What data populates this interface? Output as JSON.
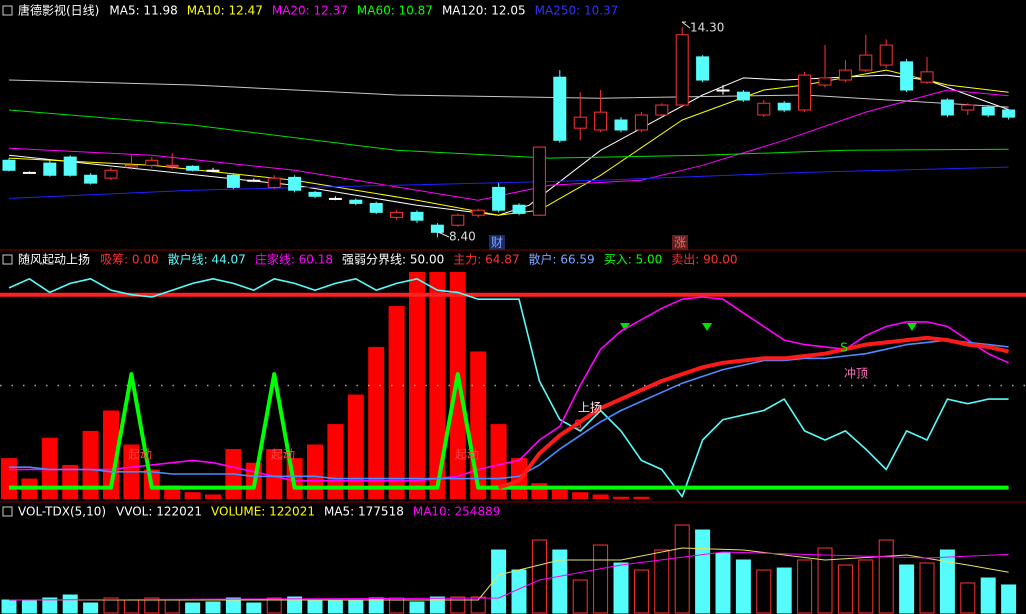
{
  "chart_data": [
    {
      "type": "candlestick",
      "title": "唐德影视(日线)",
      "legend_items": [
        {
          "text": "MA5: 11.98",
          "color": "#ffffff"
        },
        {
          "text": "MA10: 12.47",
          "color": "#ffff00"
        },
        {
          "text": "MA20: 12.37",
          "color": "#ff00ff"
        },
        {
          "text": "MA60: 10.87",
          "color": "#00ff00"
        },
        {
          "text": "MA120: 12.05",
          "color": "#ffffff"
        },
        {
          "text": "MA250: 10.37",
          "color": "#3030ff"
        }
      ],
      "ylim": [
        8.1,
        14.55
      ],
      "up_color": "#ff3232",
      "down_color": "#54fcfc",
      "candles": {
        "open": [
          10.56,
          10.22,
          10.48,
          10.65,
          10.14,
          10.06,
          10.37,
          10.42,
          10.39,
          10.39,
          10.28,
          10.14,
          10.0,
          9.8,
          10.08,
          9.66,
          9.49,
          9.44,
          9.35,
          8.96,
          9.1,
          8.74,
          8.74,
          9.02,
          9.8,
          9.3,
          9.02,
          12.89,
          11.46,
          11.41,
          11.69,
          11.41,
          11.83,
          12.11,
          13.46,
          12.53,
          12.47,
          11.83,
          12.16,
          11.97,
          12.67,
          12.81,
          13.09,
          13.23,
          13.32,
          12.75,
          12.25,
          11.97,
          12.05,
          11.97
        ],
        "high": [
          10.62,
          10.25,
          10.56,
          10.7,
          10.2,
          10.35,
          10.7,
          10.65,
          10.76,
          10.42,
          10.35,
          10.2,
          10.05,
          10.14,
          10.14,
          9.7,
          9.55,
          9.49,
          9.4,
          9.16,
          9.16,
          8.8,
          9.07,
          9.2,
          9.92,
          9.35,
          10.93,
          13.09,
          12.47,
          12.53,
          11.77,
          11.91,
          12.16,
          14.3,
          13.51,
          12.67,
          12.53,
          12.25,
          12.22,
          13.04,
          13.79,
          13.37,
          14.08,
          13.95,
          13.4,
          13.46,
          12.3,
          12.16,
          12.11,
          12.0
        ],
        "low": [
          10.25,
          10.2,
          10.1,
          10.1,
          9.88,
          10.0,
          10.3,
          10.35,
          10.3,
          10.25,
          10.22,
          9.75,
          9.95,
          9.75,
          9.66,
          9.5,
          9.44,
          9.3,
          9.05,
          8.9,
          8.8,
          8.4,
          8.7,
          8.96,
          9.1,
          9.02,
          9.0,
          11.05,
          11.12,
          11.35,
          11.35,
          11.35,
          11.77,
          12.05,
          12.75,
          12.4,
          12.2,
          11.77,
          11.91,
          11.91,
          12.6,
          12.75,
          13.04,
          13.15,
          12.47,
          12.7,
          11.77,
          11.83,
          11.77,
          11.7
        ],
        "close": [
          10.28,
          10.22,
          10.14,
          10.14,
          9.92,
          10.28,
          10.42,
          10.56,
          10.42,
          10.28,
          10.28,
          9.8,
          10.0,
          10.06,
          9.72,
          9.55,
          9.49,
          9.35,
          9.1,
          9.1,
          8.88,
          8.54,
          9.02,
          9.16,
          9.16,
          9.07,
          10.93,
          11.12,
          11.77,
          11.91,
          11.41,
          11.83,
          12.11,
          14.08,
          12.81,
          12.53,
          12.25,
          12.16,
          11.97,
          12.95,
          12.87,
          13.09,
          13.51,
          13.79,
          12.53,
          13.04,
          11.83,
          12.11,
          11.83,
          11.77
        ]
      },
      "series": [
        {
          "color": "#ffffff",
          "x": [
            0,
            7,
            14,
            20,
            24,
            25.5,
            29,
            34,
            36,
            38,
            43,
            45,
            49
          ],
          "values": [
            10.7,
            10.28,
            9.86,
            9.3,
            9.02,
            9.3,
            10.84,
            12.39,
            12.87,
            12.81,
            12.95,
            12.81,
            11.98
          ]
        },
        {
          "color": "#ffff00",
          "x": [
            0,
            7,
            14,
            20,
            24,
            26,
            29,
            33,
            37,
            39,
            43,
            46,
            49
          ],
          "values": [
            10.62,
            10.42,
            10.0,
            9.44,
            9.02,
            9.16,
            10.14,
            11.69,
            12.53,
            12.67,
            13.09,
            12.67,
            12.47
          ]
        },
        {
          "color": "#ff00ff",
          "x": [
            0,
            7,
            14,
            20,
            23,
            26.5,
            31,
            34,
            38,
            42,
            46,
            49
          ],
          "values": [
            10.9,
            10.7,
            10.28,
            9.72,
            9.44,
            9.86,
            10.0,
            10.42,
            11.12,
            11.91,
            12.53,
            12.37
          ]
        },
        {
          "color": "#00e000",
          "x": [
            0,
            9,
            19,
            26.5,
            34,
            41,
            49
          ],
          "values": [
            11.97,
            11.55,
            10.84,
            10.62,
            10.7,
            10.84,
            10.87
          ]
        },
        {
          "color": "#c8c8c8",
          "x": [
            0,
            9,
            19,
            29,
            39,
            49
          ],
          "values": [
            12.81,
            12.67,
            12.39,
            12.3,
            12.39,
            12.05
          ]
        },
        {
          "color": "#2020ff",
          "x": [
            0,
            9,
            19,
            29,
            39,
            49
          ],
          "values": [
            9.49,
            9.72,
            9.86,
            10.0,
            10.22,
            10.37
          ]
        }
      ],
      "annotations": [
        "14.30",
        "8.40",
        "财",
        "涨"
      ]
    },
    {
      "type": "indicator",
      "title": "随风起动上扬",
      "legend_items": [
        {
          "text": "吸筹: 0.00",
          "color": "#ff3030"
        },
        {
          "text": "散户线: 44.07",
          "color": "#54fcfc"
        },
        {
          "text": "庄家线: 60.18",
          "color": "#ff00ff"
        },
        {
          "text": "强弱分界线: 50.00",
          "color": "#ffffff"
        },
        {
          "text": "主力: 64.87",
          "color": "#ff3030"
        },
        {
          "text": "散户: 66.59",
          "color": "#7aa8ff"
        },
        {
          "text": "买入: 5.00",
          "color": "#00ff00"
        },
        {
          "text": "卖出: 90.00",
          "color": "#ff3030"
        }
      ],
      "ylim": [
        0,
        100
      ],
      "bar_color": "#ff0000",
      "values": [
        18,
        9,
        27,
        15,
        30,
        39,
        24,
        13,
        6,
        3,
        2,
        22,
        16,
        22,
        18,
        24,
        33,
        46,
        67,
        85,
        100,
        100,
        100,
        65,
        33,
        18,
        7,
        4,
        3,
        2,
        1,
        1,
        0,
        0,
        0,
        0,
        0,
        0,
        0,
        0,
        0,
        0,
        0,
        0,
        0,
        0,
        0,
        0,
        0,
        0
      ],
      "reference_lines": [
        {
          "value": 90,
          "color": "#ff2020",
          "style": "solid"
        },
        {
          "value": 50,
          "color": "#aaaaaa",
          "style": "dotted"
        }
      ],
      "series": [
        {
          "color": "#54fcfc",
          "thick": false,
          "values": [
            93,
            97,
            91,
            95,
            97,
            92,
            90,
            89,
            92,
            95,
            97,
            95,
            92,
            97,
            95,
            92,
            95,
            97,
            92,
            95,
            97,
            92,
            91,
            88,
            88,
            88,
            52,
            35,
            30,
            39,
            30,
            17,
            13,
            1,
            26,
            35,
            37,
            39,
            44,
            30,
            26,
            30,
            22,
            13,
            30,
            26,
            44,
            42,
            44,
            44
          ]
        },
        {
          "color": "#ff00ff",
          "thick": false,
          "values": [
            13,
            13,
            13,
            13,
            13,
            13,
            14,
            15,
            16,
            17,
            16,
            14,
            12,
            10,
            8,
            8,
            8,
            8,
            8,
            8,
            8,
            9,
            10,
            13,
            15,
            17,
            26,
            32,
            50,
            66,
            74,
            79,
            84,
            88,
            89,
            88,
            82,
            76,
            70,
            68,
            67,
            66,
            72,
            76,
            78,
            78,
            76,
            70,
            64,
            60
          ]
        },
        {
          "color": "#00ff00",
          "thick": true,
          "values": [
            5,
            5,
            5,
            5,
            5,
            5,
            55,
            5,
            5,
            5,
            5,
            5,
            5,
            55,
            5,
            5,
            5,
            5,
            5,
            5,
            5,
            5,
            55,
            5,
            5,
            5,
            5,
            5,
            5,
            5,
            5,
            5,
            5,
            5,
            5,
            5,
            5,
            5,
            5,
            5,
            5,
            5,
            5,
            5,
            5,
            5,
            5,
            5,
            5,
            5
          ]
        },
        {
          "color": "#4a8cff",
          "thick": false,
          "values": [
            14,
            14,
            13,
            13,
            13,
            12,
            12,
            12,
            11,
            11,
            11,
            11,
            10,
            10,
            10,
            10,
            9,
            9,
            9,
            9,
            9,
            9,
            9,
            9,
            9,
            10,
            15,
            22,
            28,
            34,
            39,
            43,
            47,
            51,
            54,
            57,
            59,
            61,
            61,
            62,
            62,
            63,
            64,
            66,
            68,
            69,
            70,
            69,
            68,
            67
          ]
        },
        {
          "color": "#ff1a1a",
          "thick": true,
          "values": [
            null,
            null,
            null,
            null,
            null,
            null,
            null,
            null,
            null,
            null,
            null,
            null,
            null,
            null,
            null,
            null,
            null,
            null,
            null,
            null,
            null,
            null,
            null,
            null,
            5,
            8,
            20,
            28,
            34,
            40,
            44,
            48,
            52,
            55,
            58,
            60,
            61,
            62,
            62,
            63,
            64,
            66,
            68,
            69,
            70,
            71,
            70,
            68,
            67,
            65
          ]
        }
      ],
      "annotations": [
        "起动",
        "起动",
        "起动",
        "上扬",
        "冲顶",
        "S",
        "S"
      ]
    },
    {
      "type": "bar",
      "title": "VOL-TDX(5,10)",
      "legend_items": [
        {
          "text": "VVOL: 122021",
          "color": "#ffffff"
        },
        {
          "text": "VOLUME: 122021",
          "color": "#ffff00"
        },
        {
          "text": "MA5: 177518",
          "color": "#ffffff"
        },
        {
          "text": "MA10: 254889",
          "color": "#ff00ff"
        }
      ],
      "ylim": [
        0,
        470000
      ],
      "values": [
        56600,
        56600,
        65300,
        78300,
        43500,
        65300,
        56600,
        65300,
        56600,
        43500,
        47900,
        65300,
        43500,
        65300,
        69600,
        56600,
        56600,
        56600,
        65300,
        65300,
        47900,
        69600,
        69600,
        69600,
        274200,
        187100,
        317700,
        274200,
        143600,
        295900,
        217600,
        187100,
        274200,
        383000,
        361200,
        261100,
        230700,
        187100,
        195800,
        230700,
        282900,
        208900,
        230700,
        317700,
        208900,
        217600,
        274200,
        130600,
        152300,
        122021
      ],
      "series": [
        {
          "color": "#e8e060",
          "x": [
            0,
            23,
            24,
            27,
            30,
            33,
            36,
            40,
            44,
            47,
            49
          ],
          "values": [
            56600,
            56600,
            165400,
            230700,
            230700,
            282900,
            274200,
            230700,
            252400,
            208900,
            177518
          ]
        },
        {
          "color": "#ff00ff",
          "x": [
            0,
            24,
            26,
            30,
            35,
            40,
            45,
            49
          ],
          "values": [
            56600,
            65300,
            143600,
            208900,
            265500,
            252400,
            239400,
            254889
          ]
        }
      ]
    }
  ]
}
